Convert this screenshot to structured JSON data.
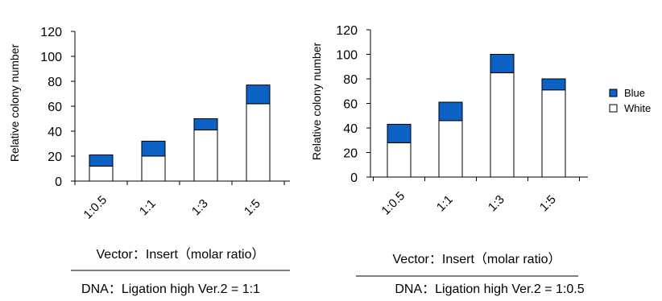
{
  "chart_data": [
    {
      "type": "bar",
      "stacked": true,
      "categories": [
        "1:0.5",
        "1:1",
        "1:3",
        "1:5"
      ],
      "series": [
        {
          "name": "White",
          "values": [
            12,
            20,
            41,
            62
          ]
        },
        {
          "name": "Blue",
          "values": [
            9,
            12,
            9,
            15
          ]
        }
      ],
      "ylabel": "Relative colony number",
      "xlabel": "Vector：Insert（molar ratio）",
      "footer": "DNA：Ligation high Ver.2 = 1:1",
      "ylim": [
        0,
        120
      ],
      "yticks": [
        0,
        20,
        40,
        60,
        80,
        100,
        120
      ],
      "grid": false
    },
    {
      "type": "bar",
      "stacked": true,
      "categories": [
        "1:0.5",
        "1:1",
        "1:3",
        "1:5"
      ],
      "series": [
        {
          "name": "White",
          "values": [
            28,
            46,
            85,
            71
          ]
        },
        {
          "name": "Blue",
          "values": [
            15,
            15,
            15,
            9
          ]
        }
      ],
      "ylabel": "Relative colony number",
      "xlabel": "Vector：Insert（molar ratio）",
      "footer": "DNA：Ligation high Ver.2 = 1:0.5",
      "ylim": [
        0,
        120
      ],
      "yticks": [
        0,
        20,
        40,
        60,
        80,
        100,
        120
      ],
      "grid": false
    }
  ],
  "legend": {
    "items": [
      {
        "label": "Blue",
        "color": "#0b61c4"
      },
      {
        "label": "White",
        "color": "#ffffff"
      }
    ]
  },
  "colors": {
    "blue": "#0b61c4",
    "white": "#ffffff",
    "stroke": "#000000"
  }
}
